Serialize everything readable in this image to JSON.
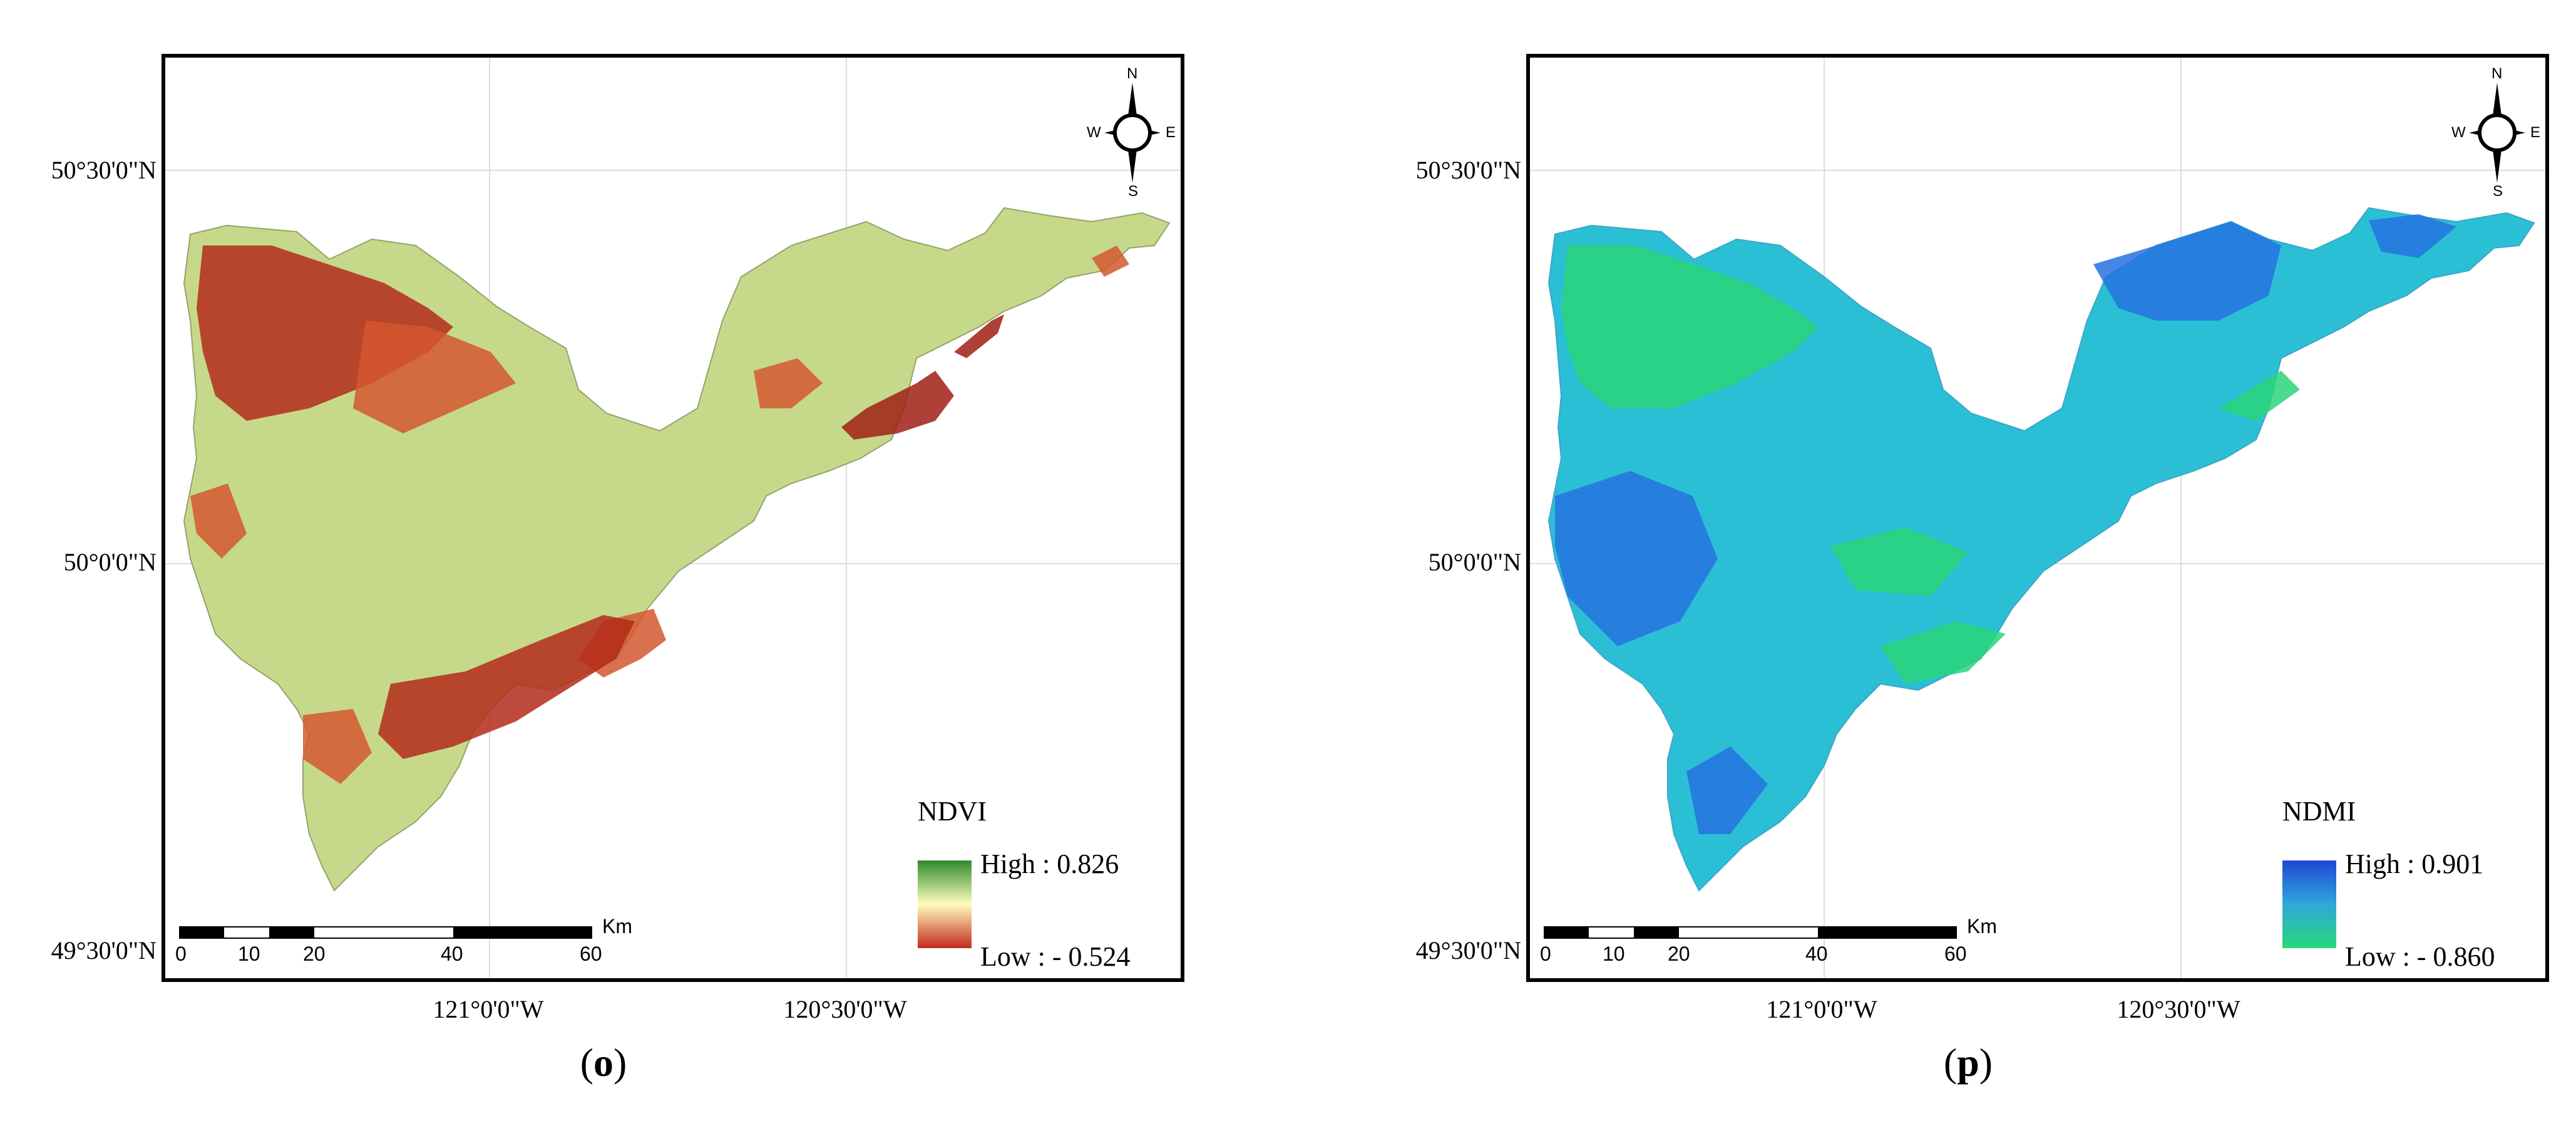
{
  "panels": [
    {
      "id": "o",
      "caption": "o",
      "legend": {
        "title": "NDVI",
        "high": "High : 0.826",
        "low": "Low : - 0.524",
        "colors": [
          "#2f8a2a",
          "#fffdc0",
          "#c42a1c"
        ]
      },
      "region_fill": "#c6d98b",
      "patch_colors": [
        "#b32a1a",
        "#d4572f",
        "#a01e14"
      ]
    },
    {
      "id": "p",
      "caption": "p",
      "legend": {
        "title": "NDMI",
        "high": "High : 0.901",
        "low": "Low : - 0.860",
        "colors": [
          "#2145d6",
          "#2fa8d9",
          "#27d87a"
        ]
      },
      "region_fill": "#2bbfd6",
      "patch_colors": [
        "#2ad57a",
        "#2672e0",
        "#2ad57a"
      ]
    }
  ],
  "lat_labels": [
    "50°30'0\"N",
    "50°0'0\"N",
    "49°30'0\"N"
  ],
  "lon_labels": [
    "121°0'0\"W",
    "120°30'0\"W"
  ],
  "scale": {
    "ticks": [
      "0",
      "10",
      "20",
      "40",
      "60"
    ],
    "unit": "Km"
  },
  "compass": {
    "n": "N",
    "s": "S",
    "e": "E",
    "w": "W"
  }
}
